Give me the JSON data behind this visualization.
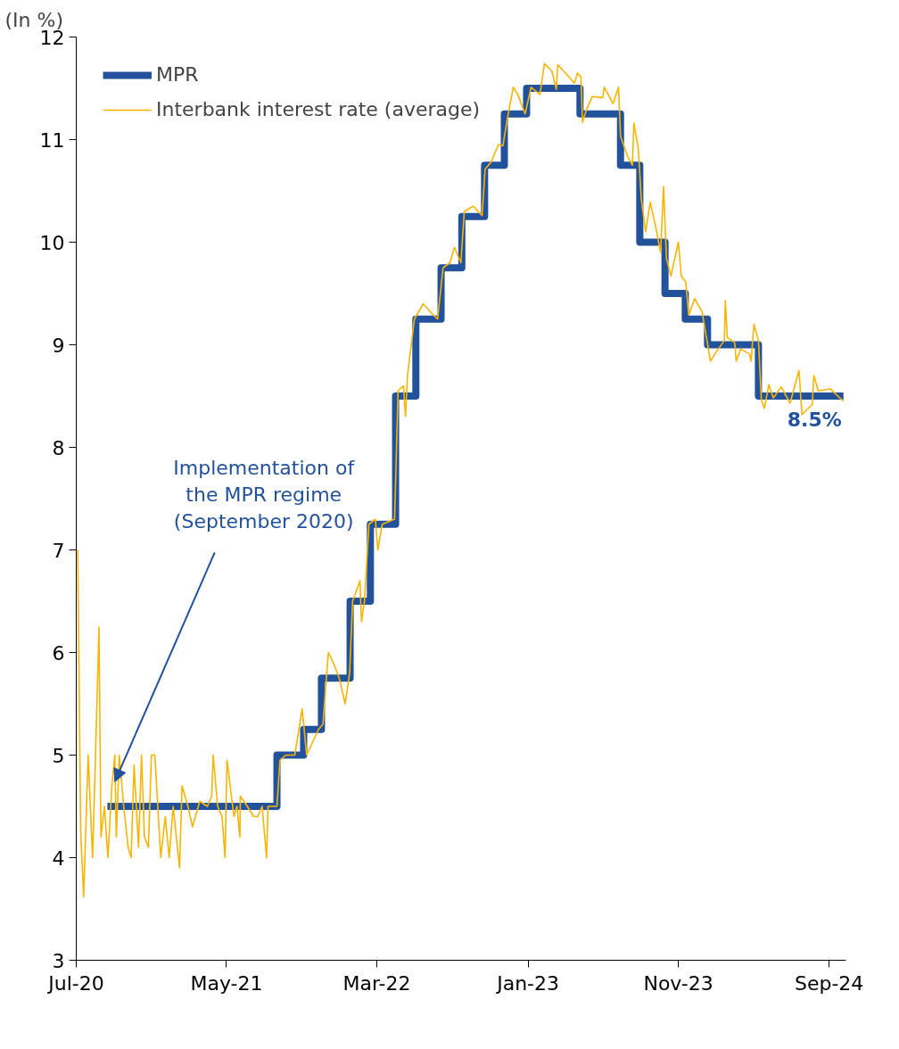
{
  "chart_data": {
    "type": "line",
    "ylabel": "(In %)",
    "xlim": [
      "2020-07-01",
      "2024-10-05"
    ],
    "xticks": [
      {
        "value": "2020-07-01",
        "label": "Jul-20"
      },
      {
        "value": "2021-05-01",
        "label": "May-21"
      },
      {
        "value": "2022-03-01",
        "label": "Mar-22"
      },
      {
        "value": "2023-01-01",
        "label": "Jan-23"
      },
      {
        "value": "2023-11-01",
        "label": "Nov-23"
      },
      {
        "value": "2024-09-01",
        "label": "Sep-24"
      }
    ],
    "ylim": [
      3,
      12
    ],
    "yticks": [
      3,
      4,
      5,
      6,
      7,
      8,
      9,
      10,
      11,
      12
    ],
    "grid": false,
    "legend": "top left",
    "annotations": [
      {
        "text": "Implementation of the MPR regime (September 2020)",
        "x": "2020-09-17",
        "y": 4.74
      },
      {
        "text": "8.5%",
        "x": "2024-09-30",
        "y": 8.5
      }
    ],
    "series": [
      {
        "name": "MPR",
        "type": "step",
        "color": "#22529b",
        "x": [
          "2020-09-02",
          "2021-08-11",
          "2021-10-04",
          "2021-11-09",
          "2022-01-06",
          "2022-02-16",
          "2022-04-08",
          "2022-05-19",
          "2022-07-09",
          "2022-08-20",
          "2022-10-05",
          "2022-11-14",
          "2022-12-29",
          "2023-04-16",
          "2023-07-07",
          "2023-08-15",
          "2023-10-05",
          "2023-11-15",
          "2023-12-30",
          "2024-04-11",
          "2024-09-30"
        ],
        "values": [
          4.5,
          5.0,
          5.25,
          5.75,
          6.5,
          7.25,
          8.5,
          9.25,
          9.75,
          10.25,
          10.75,
          11.25,
          11.5,
          11.25,
          10.75,
          10.0,
          9.5,
          9.25,
          9.0,
          8.5,
          8.5
        ]
      },
      {
        "name": "Interbank interest rate (average)",
        "color": "#f8b400",
        "x": [
          "2020-07-04",
          "2020-07-10",
          "2020-07-16",
          "2020-07-25",
          "2020-08-03",
          "2020-08-09",
          "2020-08-16",
          "2020-08-20",
          "2020-08-27",
          "2020-09-03",
          "2020-09-11",
          "2020-09-17",
          "2020-09-20",
          "2020-09-26",
          "2020-10-05",
          "2020-10-14",
          "2020-10-20",
          "2020-10-26",
          "2020-11-04",
          "2020-11-10",
          "2020-11-16",
          "2020-11-24",
          "2020-11-30",
          "2020-12-07",
          "2020-12-13",
          "2020-12-19",
          "2020-12-28",
          "2021-01-05",
          "2021-01-13",
          "2021-01-26",
          "2021-01-31",
          "2021-02-12",
          "2021-02-21",
          "2021-03-08",
          "2021-03-23",
          "2021-04-01",
          "2021-04-04",
          "2021-04-13",
          "2021-04-22",
          "2021-04-28",
          "2021-05-02",
          "2021-05-16",
          "2021-05-22",
          "2021-05-28",
          "2021-05-29",
          "2021-06-12",
          "2021-06-25",
          "2021-07-03",
          "2021-07-12",
          "2021-07-21",
          "2021-07-24",
          "2021-08-11",
          "2021-08-17",
          "2021-08-29",
          "2021-09-16",
          "2021-10-01",
          "2021-10-10",
          "2021-11-03",
          "2021-11-12",
          "2021-11-23",
          "2021-12-03",
          "2021-12-15",
          "2021-12-27",
          "2022-01-05",
          "2022-01-11",
          "2022-01-26",
          "2022-01-29",
          "2022-02-04",
          "2022-02-13",
          "2022-02-26",
          "2022-03-03",
          "2022-03-12",
          "2022-04-06",
          "2022-04-13",
          "2022-04-24",
          "2022-04-28",
          "2022-05-02",
          "2022-05-16",
          "2022-06-03",
          "2022-06-21",
          "2022-07-02",
          "2022-07-13",
          "2022-07-27",
          "2022-08-05",
          "2022-08-18",
          "2022-08-25",
          "2022-09-12",
          "2022-09-30",
          "2022-10-06",
          "2022-10-18",
          "2022-11-02",
          "2022-11-11",
          "2022-11-20",
          "2022-12-02",
          "2022-12-11",
          "2022-12-26",
          "2023-01-07",
          "2023-01-25",
          "2023-02-03",
          "2023-02-18",
          "2023-02-27",
          "2023-03-02",
          "2023-03-23",
          "2023-04-05",
          "2023-04-11",
          "2023-04-18",
          "2023-04-21",
          "2023-04-29",
          "2023-05-11",
          "2023-06-01",
          "2023-06-04",
          "2023-06-22",
          "2023-07-03",
          "2023-07-07",
          "2023-07-22",
          "2023-07-31",
          "2023-08-03",
          "2023-08-12",
          "2023-08-18",
          "2023-08-27",
          "2023-09-05",
          "2023-09-17",
          "2023-09-26",
          "2023-10-02",
          "2023-10-08",
          "2023-10-17",
          "2023-11-01",
          "2023-11-07",
          "2023-11-16",
          "2023-11-22",
          "2023-12-04",
          "2023-12-19",
          "2024-01-05",
          "2024-01-18",
          "2024-02-02",
          "2024-02-04",
          "2024-02-08",
          "2024-02-23",
          "2024-02-26",
          "2024-03-06",
          "2024-03-24",
          "2024-03-27",
          "2024-04-02",
          "2024-04-11",
          "2024-04-17",
          "2024-04-23",
          "2024-05-02",
          "2024-05-11",
          "2024-05-27",
          "2024-06-14",
          "2024-07-02",
          "2024-07-08",
          "2024-07-29",
          "2024-08-01",
          "2024-08-10",
          "2024-09-03",
          "2024-09-30"
        ],
        "values": [
          7.0,
          4.25,
          3.62,
          5.0,
          4.0,
          5.0,
          6.25,
          4.2,
          4.5,
          4.0,
          4.7,
          5.0,
          4.2,
          5.0,
          4.5,
          4.1,
          4.0,
          4.9,
          4.1,
          5.0,
          4.2,
          4.1,
          5.0,
          5.0,
          4.5,
          4.0,
          4.4,
          4.0,
          4.5,
          3.9,
          4.7,
          4.5,
          4.3,
          4.55,
          4.5,
          4.6,
          5.0,
          4.5,
          4.4,
          4.0,
          4.95,
          4.4,
          4.5,
          4.2,
          4.6,
          4.5,
          4.4,
          4.4,
          4.5,
          4.0,
          4.5,
          4.5,
          4.95,
          5.0,
          5.0,
          5.45,
          5.0,
          5.25,
          5.3,
          6.0,
          5.9,
          5.75,
          5.5,
          5.8,
          6.5,
          6.7,
          6.3,
          6.5,
          7.25,
          7.3,
          7.0,
          7.25,
          7.3,
          8.55,
          8.6,
          8.3,
          8.7,
          9.25,
          9.4,
          9.3,
          9.25,
          9.75,
          9.8,
          9.95,
          9.8,
          10.3,
          10.35,
          10.26,
          10.71,
          10.78,
          10.95,
          10.94,
          11.2,
          11.51,
          11.44,
          11.25,
          11.51,
          11.44,
          11.74,
          11.67,
          11.49,
          11.73,
          11.62,
          11.55,
          11.65,
          11.61,
          11.17,
          11.29,
          11.42,
          11.41,
          11.51,
          11.35,
          11.51,
          11.03,
          10.83,
          10.75,
          11.16,
          10.91,
          10.42,
          10.1,
          10.39,
          10.13,
          9.9,
          10.54,
          9.84,
          9.67,
          10.0,
          9.67,
          9.61,
          9.29,
          9.45,
          9.32,
          8.84,
          8.94,
          9.04,
          9.43,
          9.07,
          9.02,
          8.84,
          8.96,
          8.91,
          8.84,
          9.2,
          9.04,
          8.46,
          8.38,
          8.61,
          8.48,
          8.59,
          8.43,
          8.75,
          8.32,
          8.42,
          8.7,
          8.55,
          8.57,
          8.45
        ]
      }
    ]
  }
}
